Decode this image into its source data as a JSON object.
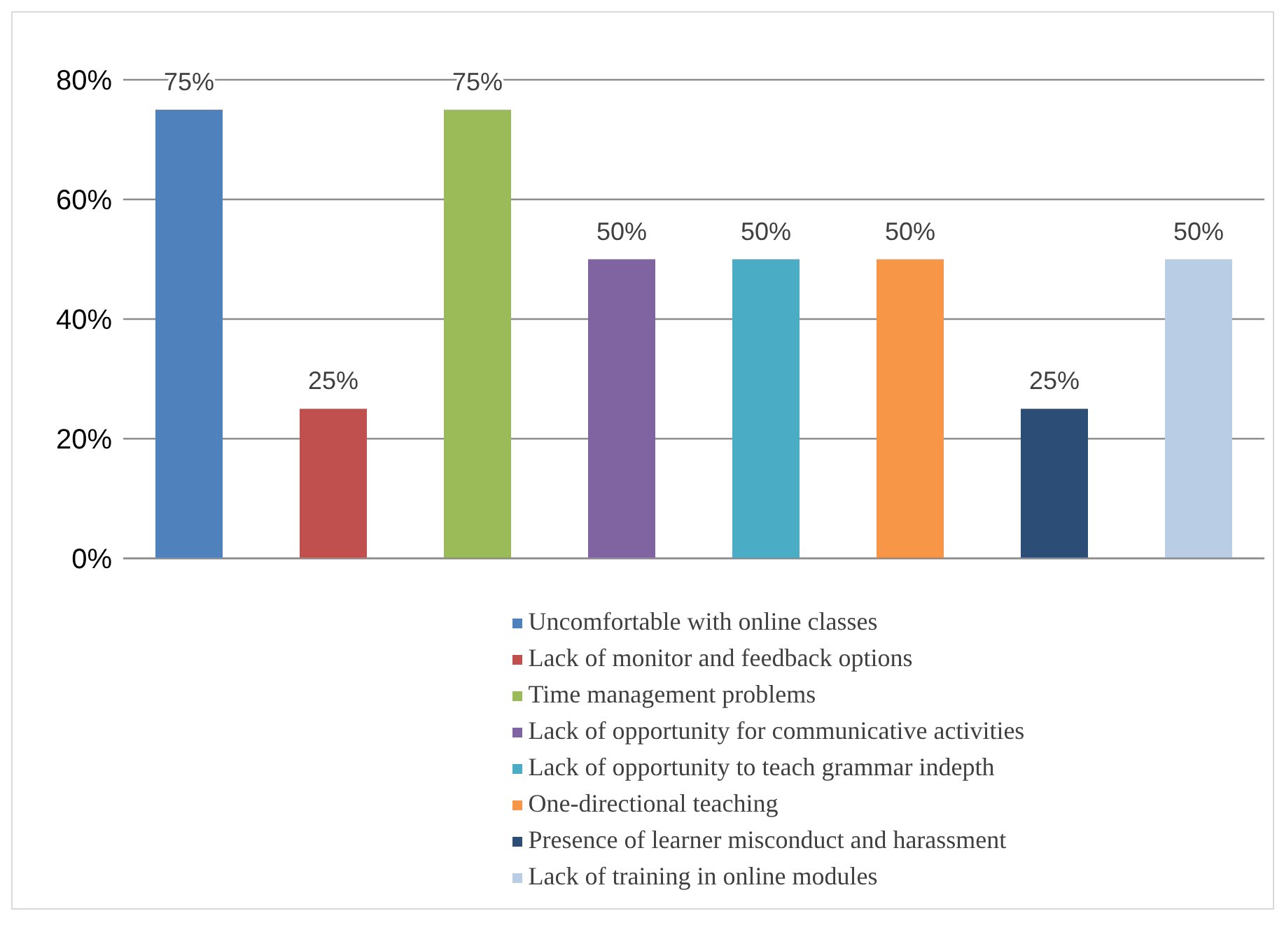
{
  "chart_data": {
    "type": "bar",
    "categories": [
      null
    ],
    "series": [
      {
        "name": "Uncomfortable with online classes",
        "color": "#4f81bd",
        "values": [
          75
        ],
        "value_labels": [
          "75%"
        ]
      },
      {
        "name": "Lack of monitor and feedback options",
        "color": "#c0504d",
        "values": [
          25
        ],
        "value_labels": [
          "25%"
        ]
      },
      {
        "name": "Time management problems",
        "color": "#9bbb59",
        "values": [
          75
        ],
        "value_labels": [
          "75%"
        ]
      },
      {
        "name": "Lack of opportunity for communicative activities",
        "color": "#8064a2",
        "values": [
          50
        ],
        "value_labels": [
          "50%"
        ]
      },
      {
        "name": "Lack of opportunity to teach grammar indepth",
        "color": "#4bacc6",
        "values": [
          50
        ],
        "value_labels": [
          "50%"
        ]
      },
      {
        "name": "One-directional teaching",
        "color": "#f79646",
        "values": [
          50
        ],
        "value_labels": [
          "50%"
        ]
      },
      {
        "name": "Presence of learner misconduct and harassment",
        "color": "#2c4d75",
        "values": [
          25
        ],
        "value_labels": [
          "25%"
        ]
      },
      {
        "name": "Lack of training in online modules",
        "color": "#b9cde5",
        "values": [
          50
        ],
        "value_labels": [
          "50%"
        ]
      }
    ],
    "ylim": [
      0,
      80
    ],
    "yticks": [
      {
        "value": 0,
        "label": "0%"
      },
      {
        "value": 20,
        "label": "20%"
      },
      {
        "value": 40,
        "label": "40%"
      },
      {
        "value": 60,
        "label": "60%"
      },
      {
        "value": 80,
        "label": "80%"
      }
    ],
    "grid": "y",
    "legend": "bottom"
  }
}
